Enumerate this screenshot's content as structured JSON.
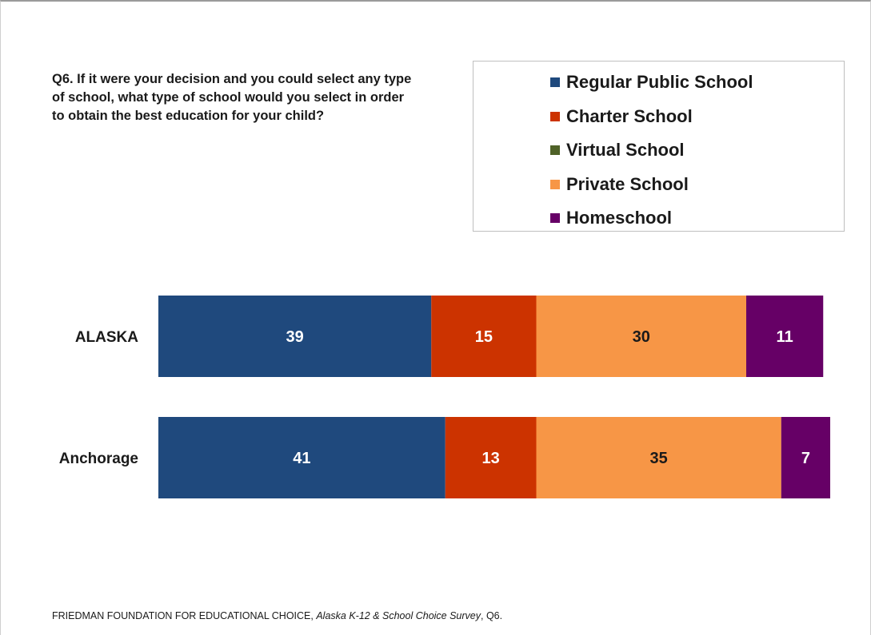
{
  "question": "Q6.  If it were your decision and you could select any type of school, what type of school would you select in order to obtain the best education for your child?",
  "source": {
    "org": "FRIEDMAN FOUNDATION FOR EDUCATIONAL CHOICE, ",
    "title": "Alaska K-12 & School Choice Survey",
    "suffix": ", Q6."
  },
  "chart_data": {
    "type": "bar",
    "orientation": "horizontal",
    "stacked": true,
    "categories": [
      "ALASKA",
      "Anchorage"
    ],
    "series": [
      {
        "name": "Regular Public School",
        "color": "#1f497d",
        "values": [
          39,
          41
        ]
      },
      {
        "name": "Charter School",
        "color": "#cc3300",
        "values": [
          15,
          13
        ]
      },
      {
        "name": "Virtual School",
        "color": "#4f6228",
        "values": [
          0,
          0
        ]
      },
      {
        "name": "Private School",
        "color": "#f79646",
        "values": [
          30,
          35
        ]
      },
      {
        "name": "Homeschool",
        "color": "#660066",
        "values": [
          11,
          7
        ]
      }
    ],
    "label_colors": {
      "Regular Public School": "#ffffff",
      "Charter School": "#ffffff",
      "Virtual School": "#ffffff",
      "Private School": "#1a1a1a",
      "Homeschool": "#ffffff"
    },
    "legend_position": "top-right",
    "grid": false,
    "xlim": [
      0,
      100
    ]
  }
}
